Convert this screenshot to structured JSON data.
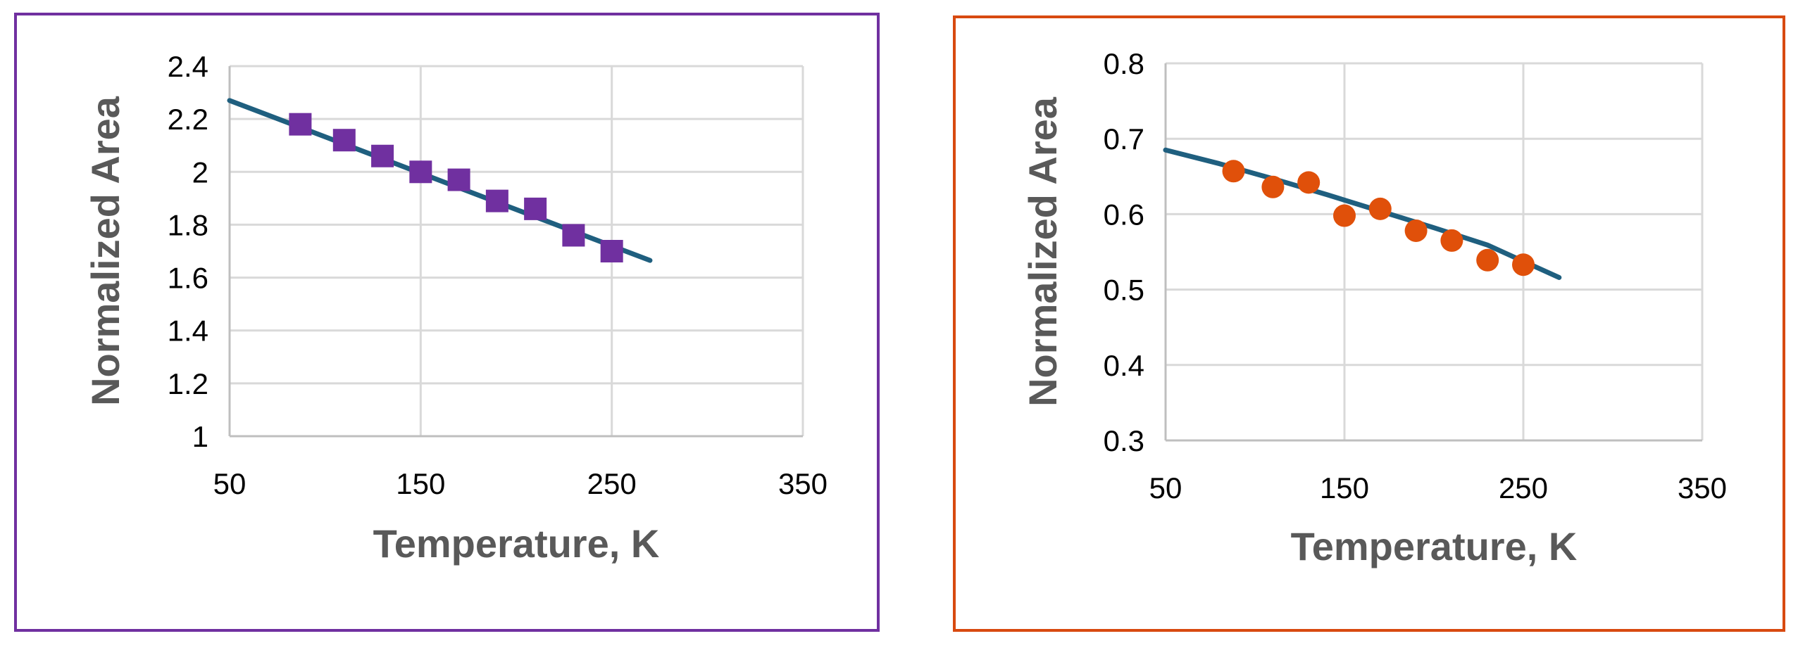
{
  "colors": {
    "left_frame": "#7030a0",
    "right_frame": "#d84a10",
    "fit_line": "#1f5f7f",
    "left_marker": "#7030a0",
    "right_marker": "#e0500a"
  },
  "chart_data": [
    {
      "type": "scatter",
      "title": "",
      "xlabel": "Temperature, K",
      "ylabel": "Normalized Area",
      "xlim": [
        50,
        350
      ],
      "ylim": [
        1,
        2.4
      ],
      "x_ticks": [
        50,
        150,
        250,
        350
      ],
      "x_tick_labels": [
        "50",
        "150",
        "250",
        "350"
      ],
      "y_ticks": [
        1,
        1.2,
        1.4,
        1.6,
        1.8,
        2,
        2.2,
        2.4
      ],
      "y_tick_labels": [
        "1",
        "1.2",
        "1.4",
        "1.6",
        "1.8",
        "2",
        "2.2",
        "2.4"
      ],
      "marker": "square",
      "series": [
        {
          "name": "data",
          "x": [
            87,
            110,
            130,
            150,
            170,
            190,
            210,
            230,
            250
          ],
          "y": [
            2.18,
            2.12,
            2.06,
            2.0,
            1.97,
            1.89,
            1.86,
            1.76,
            1.7
          ]
        },
        {
          "name": "fit",
          "style": "line",
          "x": [
            50,
            270
          ],
          "y": [
            2.27,
            1.665
          ]
        }
      ]
    },
    {
      "type": "scatter",
      "title": "",
      "xlabel": "Temperature, K",
      "ylabel": "Normalized Area",
      "xlim": [
        50,
        350
      ],
      "ylim": [
        0.3,
        0.8
      ],
      "x_ticks": [
        50,
        150,
        250,
        350
      ],
      "x_tick_labels": [
        "50",
        "150",
        "250",
        "350"
      ],
      "y_ticks": [
        0.3,
        0.4,
        0.5,
        0.6,
        0.7,
        0.8
      ],
      "y_tick_labels": [
        "0.3",
        "0.4",
        "0.5",
        "0.6",
        "0.7",
        "0.8"
      ],
      "marker": "circle",
      "series": [
        {
          "name": "data",
          "x": [
            88,
            110,
            130,
            150,
            170,
            190,
            210,
            230,
            250
          ],
          "y": [
            0.657,
            0.636,
            0.642,
            0.598,
            0.607,
            0.578,
            0.565,
            0.539,
            0.533
          ]
        },
        {
          "name": "fit",
          "style": "line",
          "x": [
            50,
            80,
            110,
            140,
            170,
            200,
            230,
            270
          ],
          "y": [
            0.685,
            0.667,
            0.647,
            0.626,
            0.604,
            0.582,
            0.559,
            0.516
          ]
        }
      ]
    }
  ]
}
